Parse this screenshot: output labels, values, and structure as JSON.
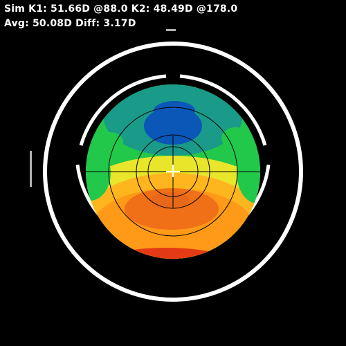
{
  "readout": {
    "line1": "Sim K1: 51.66D @88.0 K2: 48.49D @178.0",
    "line2": "Avg: 50.08D Diff: 3.17D",
    "k1_power": "51.66D",
    "k1_axis": "88.0",
    "k2_power": "48.49D",
    "k2_axis": "178.0",
    "average": "50.08D",
    "difference": "3.17D"
  },
  "map": {
    "colors": {
      "blue": "#0a57b8",
      "teal": "#1a9a88",
      "green": "#22c84a",
      "lime": "#88e52a",
      "yellow": "#e8e52a",
      "orange": "#ff9a18",
      "deep_orange": "#f07018",
      "red": "#e53a16",
      "ring": "#ffffff",
      "grid": "#000000"
    }
  }
}
